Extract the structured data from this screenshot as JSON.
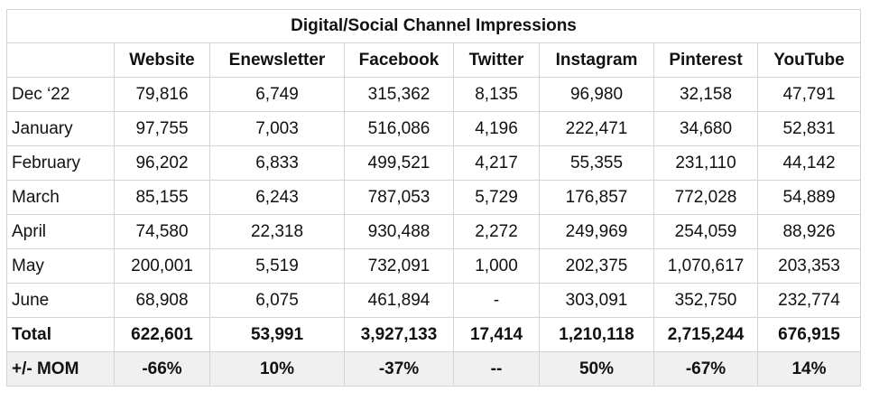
{
  "title": "Digital/Social Channel Impressions",
  "columns": [
    "Website",
    "Enewsletter",
    "Facebook",
    "Twitter",
    "Instagram",
    "Pinterest",
    "YouTube"
  ],
  "rows": [
    {
      "label": "Dec ‘22",
      "values": [
        "79,816",
        "6,749",
        "315,362",
        "8,135",
        "96,980",
        "32,158",
        "47,791"
      ]
    },
    {
      "label": "January",
      "values": [
        "97,755",
        "7,003",
        "516,086",
        "4,196",
        "222,471",
        "34,680",
        "52,831"
      ]
    },
    {
      "label": "February",
      "values": [
        "96,202",
        "6,833",
        "499,521",
        "4,217",
        "55,355",
        "231,110",
        "44,142"
      ]
    },
    {
      "label": "March",
      "values": [
        "85,155",
        "6,243",
        "787,053",
        "5,729",
        "176,857",
        "772,028",
        "54,889"
      ]
    },
    {
      "label": "April",
      "values": [
        "74,580",
        "22,318",
        "930,488",
        "2,272",
        "249,969",
        "254,059",
        "88,926"
      ]
    },
    {
      "label": "May",
      "values": [
        "200,001",
        "5,519",
        "732,091",
        "1,000",
        "202,375",
        "1,070,617",
        "203,353"
      ]
    },
    {
      "label": "June",
      "values": [
        "68,908",
        "6,075",
        "461,894",
        "-",
        "303,091",
        "352,750",
        "232,774"
      ]
    }
  ],
  "total": {
    "label": "Total",
    "values": [
      "622,601",
      "53,991",
      "3,927,133",
      "17,414",
      "1,210,118",
      "2,715,244",
      "676,915"
    ]
  },
  "mom": {
    "label": "+/- MOM",
    "values": [
      "-66%",
      "10%",
      "-37%",
      "--",
      "50%",
      "-67%",
      "14%"
    ]
  }
}
